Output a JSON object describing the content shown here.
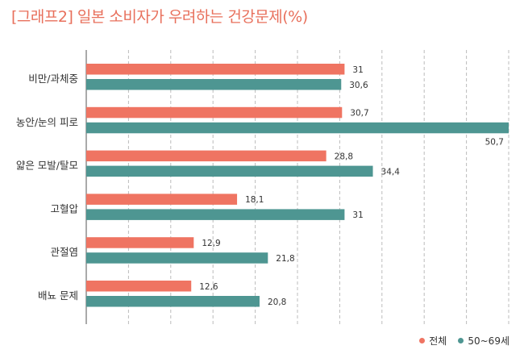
{
  "title": "[그래프2] 일본 소비자가 우려하는 건강문제(%)",
  "colors": {
    "series_all": "#ef7462",
    "series_age": "#4e9692",
    "title": "#e8705c",
    "grid": "#bcbcbc",
    "axis": "#555555"
  },
  "legend": {
    "items": [
      {
        "label": "전체",
        "color": "#ef7462"
      },
      {
        "label": "50~69세",
        "color": "#4e9692"
      }
    ]
  },
  "chart_data": {
    "type": "bar",
    "orientation": "horizontal",
    "categories": [
      "비만/과체중",
      "농안/눈의 피로",
      "얇은 모발/탈모",
      "고혈압",
      "관절염",
      "배뇨 문제"
    ],
    "series": [
      {
        "name": "전체",
        "values": [
          31,
          30.7,
          28.8,
          18.1,
          12.9,
          12.6
        ],
        "labels": [
          "31",
          "30,7",
          "28,8",
          "18,1",
          "12,9",
          "12,6"
        ]
      },
      {
        "name": "50~69세",
        "values": [
          30.6,
          50.7,
          34.4,
          31,
          21.8,
          20.8
        ],
        "labels": [
          "30,6",
          "50,7",
          "34,4",
          "31",
          "21,8",
          "20,8"
        ]
      }
    ],
    "xlim": [
      0,
      50.7
    ],
    "grid": true,
    "legend_position": "bottom-right"
  }
}
